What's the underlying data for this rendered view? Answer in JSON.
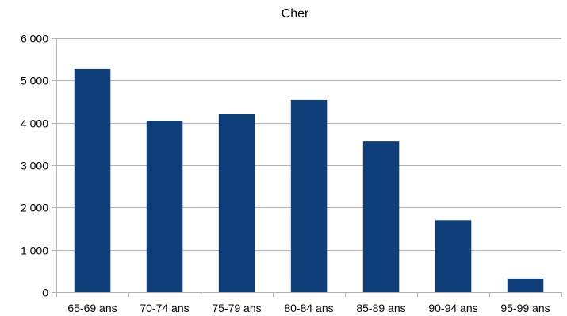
{
  "chart_data": {
    "type": "bar",
    "title": "Cher",
    "categories": [
      "65-69 ans",
      "70-74 ans",
      "75-79 ans",
      "80-84 ans",
      "85-89 ans",
      "90-94 ans",
      "95-99 ans"
    ],
    "values": [
      5270,
      4050,
      4200,
      4540,
      3560,
      1700,
      320
    ],
    "ylim": [
      0,
      6000
    ],
    "yticks": [
      0,
      1000,
      2000,
      3000,
      4000,
      5000,
      6000
    ],
    "ytick_labels": [
      "0",
      "1 000",
      "2 000",
      "3 000",
      "4 000",
      "5 000",
      "6 000"
    ],
    "grid": true,
    "legend": "none",
    "bar_color": "#0f3f7a"
  }
}
